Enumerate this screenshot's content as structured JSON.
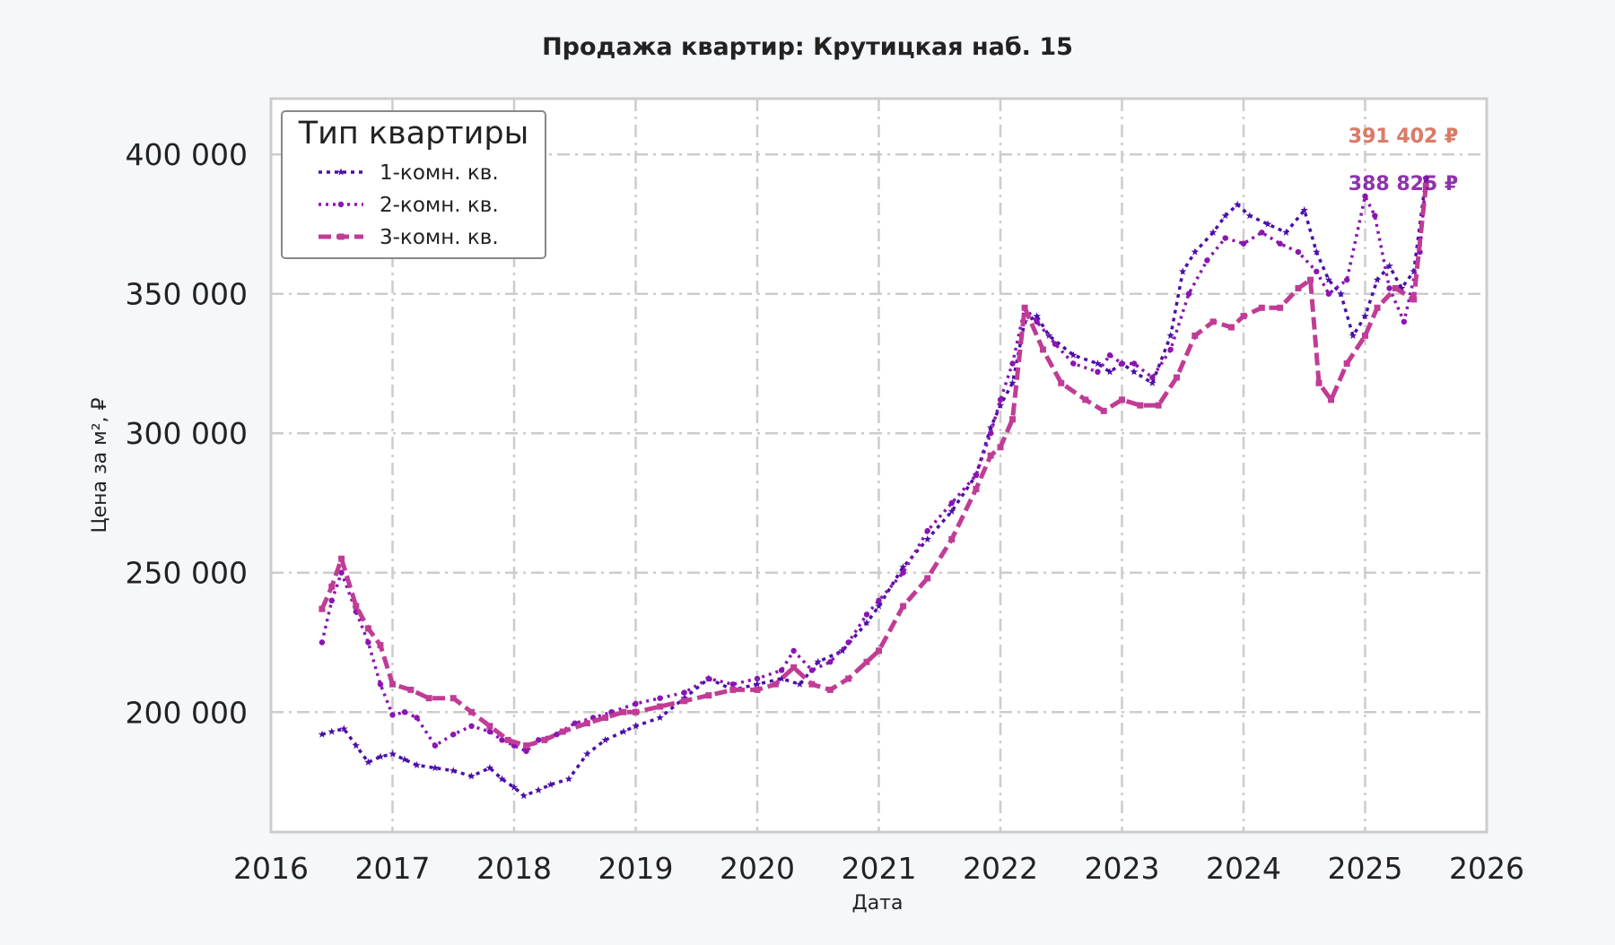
{
  "chart_data": {
    "type": "line",
    "title": "Продажа квартир: Крутицкая наб. 15",
    "xlabel": "Дата",
    "ylabel": "Цена за м², ₽",
    "xlim": [
      2016,
      2026
    ],
    "ylim": [
      157000,
      420000
    ],
    "x_ticks": [
      2016,
      2017,
      2018,
      2019,
      2020,
      2021,
      2022,
      2023,
      2024,
      2025,
      2026
    ],
    "x_tick_labels": [
      "2016",
      "2017",
      "2018",
      "2019",
      "2020",
      "2021",
      "2022",
      "2023",
      "2024",
      "2025",
      "2026"
    ],
    "y_ticks": [
      200000,
      250000,
      300000,
      350000,
      400000
    ],
    "y_tick_labels": [
      "200 000",
      "250 000",
      "300 000",
      "350 000",
      "400 000"
    ],
    "grid": true,
    "legend": {
      "title": "Тип квартиры",
      "placement": "top-left"
    },
    "series": [
      {
        "name": "1-комн. кв.",
        "color": "#4b0fa8",
        "x": [
          2016.42,
          2016.5,
          2016.6,
          2016.7,
          2016.8,
          2016.9,
          2017.0,
          2017.1,
          2017.2,
          2017.35,
          2017.5,
          2017.65,
          2017.8,
          2017.9,
          2018.0,
          2018.08,
          2018.2,
          2018.3,
          2018.45,
          2018.6,
          2018.75,
          2018.9,
          2019.0,
          2019.2,
          2019.4,
          2019.6,
          2019.8,
          2020.0,
          2020.2,
          2020.35,
          2020.5,
          2020.7,
          2020.9,
          2021.0,
          2021.2,
          2021.4,
          2021.6,
          2021.8,
          2021.92,
          2022.0,
          2022.1,
          2022.2,
          2022.3,
          2022.4,
          2022.6,
          2022.8,
          2022.9,
          2023.0,
          2023.1,
          2023.25,
          2023.4,
          2023.5,
          2023.6,
          2023.75,
          2023.85,
          2023.95,
          2024.05,
          2024.2,
          2024.35,
          2024.5,
          2024.6,
          2024.7,
          2024.8,
          2024.9,
          2025.0,
          2025.1,
          2025.2,
          2025.3,
          2025.4,
          2025.5
        ],
        "y": [
          192000,
          193000,
          194000,
          188000,
          182000,
          184000,
          185000,
          183000,
          181000,
          180000,
          179000,
          177000,
          180000,
          176000,
          173000,
          170000,
          172000,
          174000,
          176000,
          185000,
          190000,
          193000,
          195000,
          198000,
          205000,
          212000,
          208000,
          210000,
          212000,
          210000,
          218000,
          222000,
          232000,
          238000,
          252000,
          262000,
          272000,
          285000,
          302000,
          310000,
          318000,
          340000,
          342000,
          335000,
          328000,
          325000,
          322000,
          325000,
          322000,
          318000,
          335000,
          358000,
          365000,
          372000,
          378000,
          382000,
          378000,
          375000,
          372000,
          380000,
          365000,
          355000,
          350000,
          335000,
          342000,
          355000,
          360000,
          352000,
          358000,
          391402
        ]
      },
      {
        "name": "2-комн. кв.",
        "color": "#8a15b0",
        "x": [
          2016.42,
          2016.5,
          2016.58,
          2016.7,
          2016.8,
          2016.9,
          2017.0,
          2017.1,
          2017.2,
          2017.35,
          2017.5,
          2017.65,
          2017.8,
          2017.9,
          2018.0,
          2018.1,
          2018.2,
          2018.35,
          2018.5,
          2018.65,
          2018.8,
          2019.0,
          2019.2,
          2019.4,
          2019.6,
          2019.8,
          2020.0,
          2020.2,
          2020.3,
          2020.45,
          2020.6,
          2020.75,
          2020.9,
          2021.0,
          2021.2,
          2021.4,
          2021.6,
          2021.8,
          2021.92,
          2022.0,
          2022.1,
          2022.2,
          2022.3,
          2022.45,
          2022.6,
          2022.8,
          2022.9,
          2023.0,
          2023.1,
          2023.25,
          2023.4,
          2023.55,
          2023.7,
          2023.85,
          2024.0,
          2024.15,
          2024.3,
          2024.45,
          2024.6,
          2024.7,
          2024.85,
          2025.0,
          2025.08,
          2025.2,
          2025.32,
          2025.45,
          2025.5
        ],
        "y": [
          225000,
          240000,
          250000,
          236000,
          225000,
          210000,
          199000,
          200000,
          198000,
          188000,
          192000,
          195000,
          193000,
          190000,
          188000,
          186000,
          190000,
          192000,
          196000,
          198000,
          200000,
          203000,
          205000,
          207000,
          212000,
          210000,
          212000,
          215000,
          222000,
          215000,
          218000,
          225000,
          235000,
          240000,
          250000,
          265000,
          275000,
          285000,
          300000,
          312000,
          325000,
          345000,
          340000,
          332000,
          325000,
          322000,
          328000,
          325000,
          325000,
          320000,
          330000,
          350000,
          362000,
          370000,
          368000,
          372000,
          368000,
          365000,
          358000,
          350000,
          355000,
          385000,
          378000,
          352000,
          340000,
          365000,
          391402
        ]
      },
      {
        "name": "3-комн. кв.",
        "color": "#c03c95",
        "x": [
          2016.42,
          2016.5,
          2016.58,
          2016.7,
          2016.8,
          2016.9,
          2017.0,
          2017.15,
          2017.3,
          2017.5,
          2017.65,
          2017.8,
          2017.95,
          2018.1,
          2018.25,
          2018.4,
          2018.6,
          2018.75,
          2018.9,
          2019.0,
          2019.2,
          2019.4,
          2019.6,
          2019.8,
          2020.0,
          2020.15,
          2020.3,
          2020.45,
          2020.6,
          2020.75,
          2020.9,
          2021.0,
          2021.2,
          2021.4,
          2021.6,
          2021.8,
          2021.92,
          2022.0,
          2022.1,
          2022.2,
          2022.35,
          2022.5,
          2022.7,
          2022.85,
          2023.0,
          2023.15,
          2023.3,
          2023.45,
          2023.6,
          2023.75,
          2023.9,
          2024.0,
          2024.15,
          2024.3,
          2024.45,
          2024.55,
          2024.62,
          2024.72,
          2024.85,
          2025.0,
          2025.1,
          2025.25,
          2025.4,
          2025.5
        ],
        "y": [
          237000,
          245000,
          255000,
          238000,
          230000,
          224000,
          210000,
          208000,
          205000,
          205000,
          200000,
          195000,
          190000,
          188000,
          190000,
          193000,
          196000,
          198000,
          200000,
          200000,
          202000,
          204000,
          206000,
          208000,
          208000,
          210000,
          216000,
          210000,
          208000,
          212000,
          218000,
          222000,
          238000,
          248000,
          262000,
          280000,
          292000,
          295000,
          305000,
          345000,
          330000,
          318000,
          312000,
          308000,
          312000,
          310000,
          310000,
          320000,
          335000,
          340000,
          338000,
          342000,
          345000,
          345000,
          352000,
          355000,
          318000,
          312000,
          325000,
          335000,
          345000,
          352000,
          348000,
          388825
        ]
      }
    ],
    "annotations": [
      {
        "text": "391 402 ₽",
        "x": 2025.5,
        "y": 391402,
        "color": "#4b0fa8"
      },
      {
        "text": "391 402 ₽",
        "x": 2025.5,
        "y": 391402,
        "color": "#f08a57"
      },
      {
        "text": "388 825 ₽",
        "x": 2025.5,
        "y": 388825,
        "color": "#7a0fa0"
      }
    ]
  }
}
